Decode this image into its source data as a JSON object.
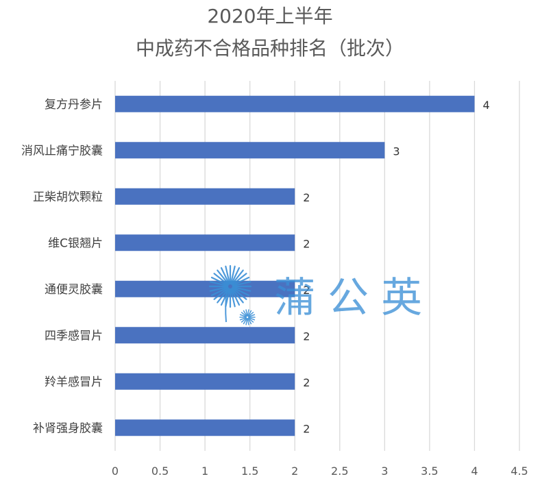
{
  "chart_data": {
    "type": "bar",
    "orientation": "horizontal",
    "title": [
      "2020年上半年",
      "中成药不合格品种排名（批次）"
    ],
    "categories": [
      "复方丹参片",
      "消风止痛宁胶囊",
      "正柴胡饮颗粒",
      "维C银翘片",
      "通便灵胶囊",
      "四季感冒片",
      "羚羊感冒片",
      "补肾强身胶囊"
    ],
    "values": [
      4,
      3,
      2,
      2,
      2,
      2,
      2,
      2
    ],
    "xlim": [
      0,
      4.5
    ],
    "xticks": [
      "0",
      "0.5",
      "1",
      "1.5",
      "2",
      "2.5",
      "3",
      "3.5",
      "4",
      "4.5"
    ],
    "xlabel": "",
    "ylabel": "",
    "grid": true,
    "legend": "none",
    "bar_color": "#4a72c0"
  },
  "watermark": {
    "text": "蒲公英",
    "icon": "dandelion-icon",
    "color": "#3a8fd6"
  }
}
